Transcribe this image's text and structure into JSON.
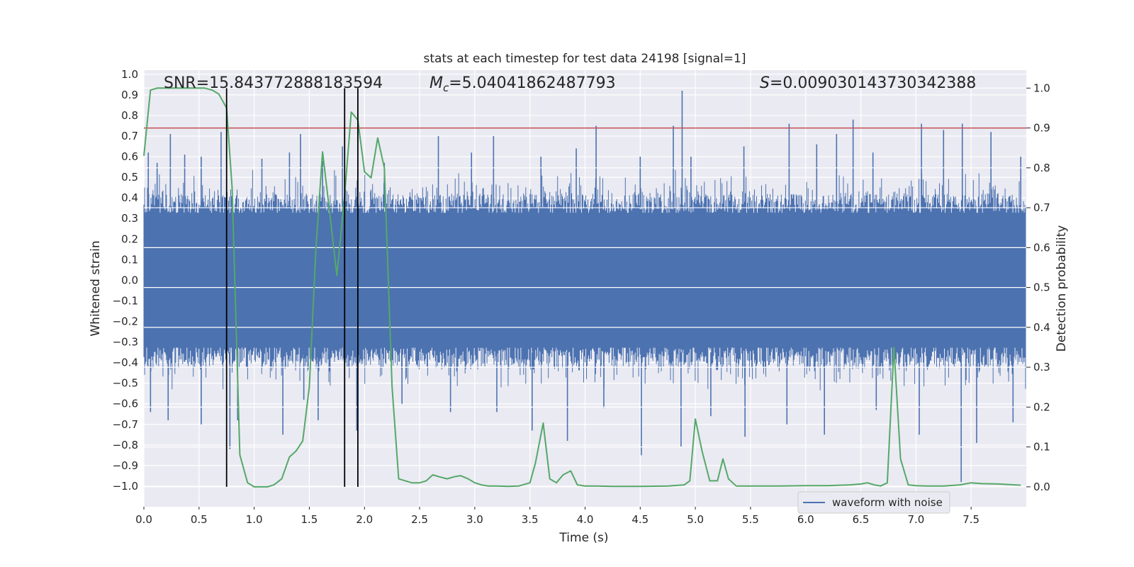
{
  "chart_data": {
    "type": "line",
    "title": "stats at each timestep for test data 24198 [signal=1]",
    "xlabel": "Time (s)",
    "ylabel": "Whitened strain",
    "y2label": "Detection probability",
    "xlim": [
      0.0,
      8.0
    ],
    "ylim": [
      -1.1,
      1.02
    ],
    "y2lim": [
      -0.05,
      1.045
    ],
    "xticks": [
      0.0,
      0.5,
      1.0,
      1.5,
      2.0,
      2.5,
      3.0,
      3.5,
      4.0,
      4.5,
      5.0,
      5.5,
      6.0,
      6.5,
      7.0,
      7.5
    ],
    "xtick_labels": [
      "0.0",
      "0.5",
      "1.0",
      "1.5",
      "2.0",
      "2.5",
      "3.0",
      "3.5",
      "4.0",
      "4.5",
      "5.0",
      "5.5",
      "6.0",
      "6.5",
      "7.0",
      "7.5"
    ],
    "yticks": [
      1.0,
      0.9,
      0.8,
      0.7,
      0.6,
      0.5,
      0.4,
      0.3,
      0.2,
      0.1,
      0.0,
      -0.1,
      -0.2,
      -0.3,
      -0.4,
      -0.5,
      -0.6,
      -0.7,
      -0.8,
      -0.9,
      -1.0
    ],
    "ytick_labels": [
      "1.0",
      "0.9",
      "0.8",
      "0.7",
      "0.6",
      "0.5",
      "0.4",
      "0.3",
      "0.2",
      "0.1",
      "0.0",
      "−0.1",
      "−0.2",
      "−0.3",
      "−0.4",
      "−0.5",
      "−0.6",
      "−0.7",
      "−0.8",
      "−0.9",
      "−1.0"
    ],
    "y2ticks": [
      1.0,
      0.9,
      0.8,
      0.7,
      0.6,
      0.5,
      0.4,
      0.3,
      0.2,
      0.1,
      0.0
    ],
    "y2tick_labels": [
      "1.0",
      "0.9",
      "0.8",
      "0.7",
      "0.6",
      "0.5",
      "0.4",
      "0.3",
      "0.2",
      "0.1",
      "0.0"
    ],
    "grid": true,
    "annotations": {
      "snr": "SNR=15.843772888183594",
      "mc_symbol": "M",
      "mc_subscript": "c",
      "mc_value": "=5.04041862487793",
      "s_symbol": "S",
      "s_value": "=0.009030143730342388"
    },
    "threshold": {
      "axis": "right",
      "value": 0.9,
      "color": "#c44e52"
    },
    "vertical_lines": {
      "x": [
        0.75,
        1.82,
        1.94
      ],
      "from_prob": 0.0,
      "to_prob": 1.0,
      "color": "#000000"
    },
    "series": [
      {
        "name": "waveform with noise",
        "type": "noise-band",
        "axis": "left",
        "color": "#4c72b0",
        "dense_upper": 0.42,
        "dense_lower": -0.42,
        "spikes": [
          {
            "x": 0.04,
            "y": 0.62
          },
          {
            "x": 0.12,
            "y": 0.57
          },
          {
            "x": 0.24,
            "y": 0.71
          },
          {
            "x": 0.37,
            "y": 0.61
          },
          {
            "x": 0.52,
            "y": 0.6
          },
          {
            "x": 0.7,
            "y": 0.72
          },
          {
            "x": 1.07,
            "y": 0.59
          },
          {
            "x": 1.32,
            "y": 0.62
          },
          {
            "x": 1.42,
            "y": 0.71
          },
          {
            "x": 1.62,
            "y": 0.58
          },
          {
            "x": 1.8,
            "y": 0.65
          },
          {
            "x": 2.18,
            "y": 0.57
          },
          {
            "x": 2.67,
            "y": 0.7
          },
          {
            "x": 2.97,
            "y": 0.62
          },
          {
            "x": 3.17,
            "y": 0.7
          },
          {
            "x": 3.6,
            "y": 0.6
          },
          {
            "x": 3.92,
            "y": 0.64
          },
          {
            "x": 4.1,
            "y": 0.75
          },
          {
            "x": 4.5,
            "y": 0.6
          },
          {
            "x": 4.8,
            "y": 0.75
          },
          {
            "x": 4.88,
            "y": 0.92
          },
          {
            "x": 4.96,
            "y": 0.6
          },
          {
            "x": 5.44,
            "y": 0.65
          },
          {
            "x": 5.85,
            "y": 0.76
          },
          {
            "x": 6.1,
            "y": 0.66
          },
          {
            "x": 6.28,
            "y": 0.71
          },
          {
            "x": 6.43,
            "y": 0.78
          },
          {
            "x": 6.61,
            "y": 0.62
          },
          {
            "x": 7.05,
            "y": 0.76
          },
          {
            "x": 7.25,
            "y": 0.73
          },
          {
            "x": 7.42,
            "y": 0.76
          },
          {
            "x": 7.68,
            "y": 0.72
          },
          {
            "x": 7.95,
            "y": 0.6
          },
          {
            "x": 0.06,
            "y": -0.64
          },
          {
            "x": 0.22,
            "y": -0.68
          },
          {
            "x": 0.52,
            "y": -0.7
          },
          {
            "x": 0.78,
            "y": -0.82
          },
          {
            "x": 0.85,
            "y": -0.68
          },
          {
            "x": 1.26,
            "y": -0.75
          },
          {
            "x": 1.45,
            "y": -0.58
          },
          {
            "x": 1.58,
            "y": -0.68
          },
          {
            "x": 1.82,
            "y": -0.67
          },
          {
            "x": 1.93,
            "y": -0.73
          },
          {
            "x": 2.34,
            "y": -0.6
          },
          {
            "x": 2.78,
            "y": -0.64
          },
          {
            "x": 3.2,
            "y": -0.64
          },
          {
            "x": 3.52,
            "y": -0.73
          },
          {
            "x": 3.84,
            "y": -0.78
          },
          {
            "x": 4.17,
            "y": -0.62
          },
          {
            "x": 4.51,
            "y": -0.85
          },
          {
            "x": 4.87,
            "y": -0.81
          },
          {
            "x": 5.14,
            "y": -0.66
          },
          {
            "x": 5.45,
            "y": -0.76
          },
          {
            "x": 5.83,
            "y": -0.7
          },
          {
            "x": 6.17,
            "y": -0.75
          },
          {
            "x": 6.64,
            "y": -0.63
          },
          {
            "x": 7.03,
            "y": -0.75
          },
          {
            "x": 7.41,
            "y": -0.98
          },
          {
            "x": 7.55,
            "y": -0.79
          },
          {
            "x": 7.88,
            "y": -0.69
          }
        ]
      },
      {
        "name": "detection probability",
        "type": "line",
        "axis": "right",
        "color": "#55a868",
        "x": [
          0.0,
          0.06,
          0.12,
          0.18,
          0.3,
          0.45,
          0.55,
          0.62,
          0.68,
          0.75,
          0.8,
          0.87,
          0.94,
          1.0,
          1.06,
          1.12,
          1.18,
          1.25,
          1.32,
          1.38,
          1.44,
          1.5,
          1.56,
          1.62,
          1.68,
          1.75,
          1.82,
          1.88,
          1.94,
          2.0,
          2.06,
          2.12,
          2.18,
          2.25,
          2.31,
          2.37,
          2.43,
          2.5,
          2.56,
          2.62,
          2.68,
          2.75,
          2.81,
          2.87,
          2.94,
          3.0,
          3.06,
          3.12,
          3.2,
          3.3,
          3.4,
          3.5,
          3.55,
          3.62,
          3.68,
          3.74,
          3.8,
          3.87,
          3.93,
          4.0,
          4.1,
          4.25,
          4.5,
          4.75,
          4.9,
          4.95,
          5.0,
          5.06,
          5.13,
          5.2,
          5.25,
          5.3,
          5.37,
          5.5,
          5.75,
          6.0,
          6.2,
          6.4,
          6.5,
          6.56,
          6.62,
          6.68,
          6.74,
          6.8,
          6.86,
          6.93,
          7.0,
          7.1,
          7.25,
          7.4,
          7.5,
          7.6,
          7.75,
          7.95
        ],
        "y": [
          0.83,
          0.995,
          1.0,
          1.0,
          1.0,
          1.0,
          1.0,
          0.995,
          0.985,
          0.95,
          0.75,
          0.08,
          0.01,
          0.0,
          0.0,
          0.0,
          0.005,
          0.02,
          0.075,
          0.09,
          0.115,
          0.25,
          0.6,
          0.84,
          0.7,
          0.53,
          0.73,
          0.94,
          0.92,
          0.79,
          0.775,
          0.875,
          0.8,
          0.25,
          0.02,
          0.015,
          0.01,
          0.01,
          0.015,
          0.03,
          0.025,
          0.02,
          0.025,
          0.028,
          0.02,
          0.01,
          0.005,
          0.002,
          0.002,
          0.001,
          0.002,
          0.01,
          0.06,
          0.16,
          0.02,
          0.01,
          0.03,
          0.04,
          0.005,
          0.002,
          0.002,
          0.001,
          0.001,
          0.002,
          0.005,
          0.015,
          0.17,
          0.09,
          0.015,
          0.015,
          0.07,
          0.02,
          0.002,
          0.002,
          0.002,
          0.003,
          0.003,
          0.005,
          0.007,
          0.01,
          0.005,
          0.002,
          0.01,
          0.35,
          0.07,
          0.005,
          0.003,
          0.002,
          0.002,
          0.005,
          0.01,
          0.008,
          0.007,
          0.004
        ]
      }
    ],
    "legend": {
      "entries": [
        "waveform with noise"
      ],
      "location": "lower-right"
    }
  }
}
